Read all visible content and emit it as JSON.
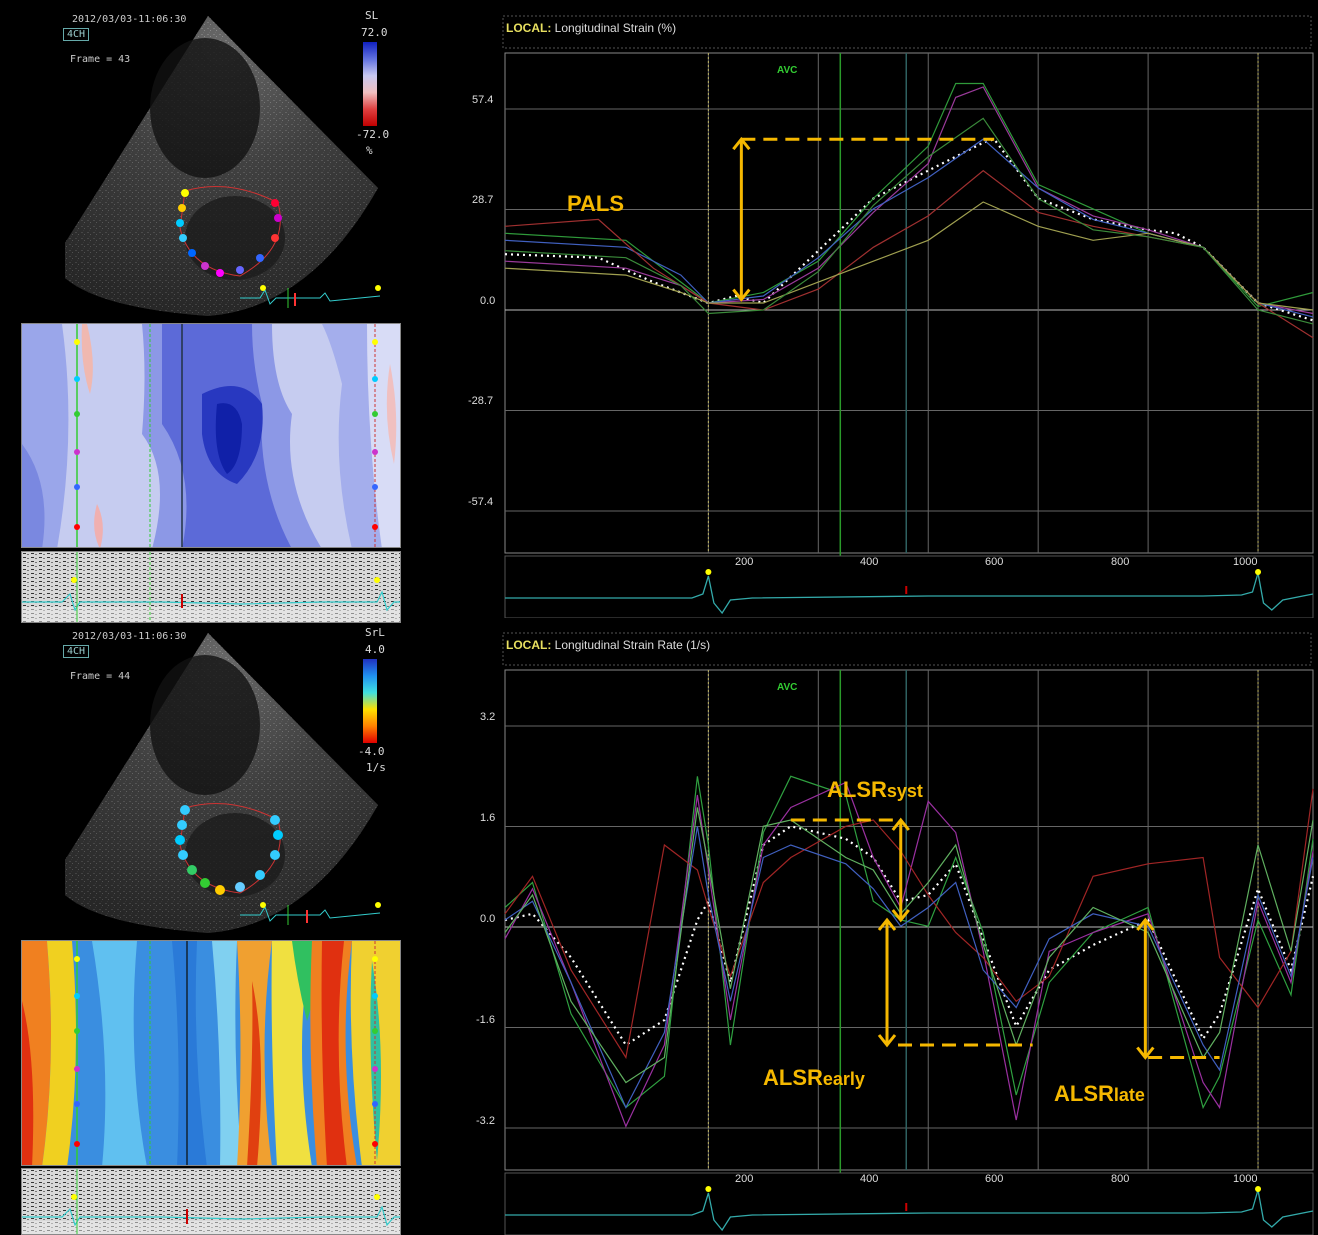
{
  "top_panel": {
    "timestamp": "2012/03/03-11:06:30",
    "view_badge": "4CH",
    "frame": "Frame = 43",
    "colorbar": {
      "label": "SL",
      "max": "72.0",
      "min": "-72.0",
      "unit": "%"
    },
    "graph": {
      "local_label": "LOCAL:",
      "title": "Longitudinal Strain (%)",
      "y_ticks": [
        "57.4",
        "28.7",
        "0.0",
        "-28.7",
        "-57.4"
      ],
      "avc_label": "AVC",
      "annotation": "PALS"
    }
  },
  "bottom_panel": {
    "timestamp": "2012/03/03-11:06:30",
    "view_badge": "4CH",
    "frame": "Frame = 44",
    "colorbar": {
      "label": "SrL",
      "max": "4.0",
      "min": "-4.0",
      "unit": "1/s"
    },
    "graph": {
      "local_label": "LOCAL:",
      "title": "Longitudinal Strain Rate (1/s)",
      "y_ticks": [
        "3.2",
        "1.6",
        "0.0",
        "-1.6",
        "-3.2"
      ],
      "avc_label": "AVC",
      "ann_syst_main": "ALSR",
      "ann_syst_sub": "syst",
      "ann_early_main": "ALSR",
      "ann_early_sub": "early",
      "ann_late_main": "ALSR",
      "ann_late_sub": "late"
    }
  },
  "ecg_x_ticks": [
    "200",
    "400",
    "600",
    "800",
    "1000"
  ],
  "colors": {
    "annotation": "#f5b800",
    "avc": "#33cc33",
    "grid": "#777777"
  },
  "chart_data": [
    {
      "type": "line",
      "title": "Longitudinal Strain (%)",
      "xlabel": "",
      "ylabel": "",
      "xlim": [
        -370,
        1100
      ],
      "ylim": [
        -71.75,
        71.75
      ],
      "series": [
        {
          "color": "#ffffff",
          "dashed": true,
          "x": [
            -370,
            -200,
            -100,
            0,
            50,
            100,
            200,
            300,
            400,
            500,
            520,
            600,
            700,
            800,
            850,
            900,
            1000,
            1100
          ],
          "y": [
            14,
            13,
            6,
            0,
            2,
            0,
            15,
            30,
            38,
            46,
            47,
            30,
            24,
            21,
            20,
            16,
            0,
            -5
          ]
        },
        {
          "color": "#2f9a3a",
          "x": [
            -370,
            -150,
            -50,
            0,
            100,
            200,
            300,
            400,
            450,
            500,
            600,
            700,
            800,
            900,
            1000,
            1100
          ],
          "y": [
            20,
            18,
            6,
            0,
            3,
            12,
            30,
            45,
            63,
            63,
            34,
            27,
            20,
            16,
            -1,
            3
          ]
        },
        {
          "color": "#9a3a9a",
          "x": [
            -370,
            -150,
            -50,
            0,
            100,
            200,
            300,
            400,
            450,
            500,
            600,
            700,
            800,
            900,
            1000,
            1100
          ],
          "y": [
            12,
            10,
            5,
            0,
            1,
            10,
            26,
            40,
            59,
            62,
            33,
            25,
            21,
            16,
            0,
            -3
          ]
        },
        {
          "color": "#4060c0",
          "x": [
            -370,
            -150,
            -50,
            0,
            100,
            200,
            300,
            400,
            500,
            600,
            700,
            800,
            900,
            1000,
            1100
          ],
          "y": [
            18,
            16,
            8,
            0,
            2,
            13,
            27,
            36,
            47,
            33,
            24,
            20,
            16,
            0,
            -4
          ]
        },
        {
          "color": "#a03030",
          "x": [
            -370,
            -200,
            -100,
            0,
            100,
            200,
            300,
            400,
            500,
            600,
            700,
            800,
            900,
            1000,
            1100
          ],
          "y": [
            22,
            24,
            10,
            0,
            -2,
            4,
            16,
            25,
            38,
            26,
            22,
            19,
            16,
            0,
            -10
          ]
        },
        {
          "color": "#a0a050",
          "x": [
            -370,
            -150,
            -50,
            0,
            100,
            200,
            300,
            400,
            500,
            600,
            700,
            800,
            900,
            1000,
            1100
          ],
          "y": [
            10,
            8,
            3,
            0,
            0,
            6,
            12,
            18,
            29,
            22,
            18,
            20,
            16,
            0,
            -2
          ]
        },
        {
          "color": "#3a8a3a",
          "x": [
            -370,
            -150,
            -50,
            0,
            100,
            200,
            300,
            400,
            500,
            600,
            700,
            800,
            900,
            1000,
            1100
          ],
          "y": [
            15,
            13,
            5,
            -3,
            -2,
            9,
            28,
            42,
            53,
            30,
            21,
            19,
            16,
            -2,
            -6
          ]
        }
      ]
    },
    {
      "type": "line",
      "title": "Longitudinal Strain Rate (1/s)",
      "xlabel": "",
      "ylabel": "",
      "xlim": [
        -370,
        1100
      ],
      "ylim": [
        -4.0,
        4.0
      ],
      "series": [
        {
          "color": "#ffffff",
          "dashed": true,
          "x": [
            -370,
            -320,
            -250,
            -150,
            -80,
            -20,
            0,
            40,
            100,
            150,
            250,
            300,
            350,
            400,
            450,
            500,
            560,
            620,
            700,
            800,
            900,
            930,
            1000,
            1060,
            1100
          ],
          "y": [
            0.0,
            0.1,
            -0.6,
            -2.0,
            -1.6,
            0.0,
            0.3,
            -1.0,
            1.2,
            1.5,
            1.3,
            1.0,
            0.3,
            0.4,
            0.9,
            -0.3,
            -1.7,
            -0.8,
            -0.4,
            0.0,
            -1.9,
            -1.5,
            0.5,
            -0.8,
            0.7
          ]
        },
        {
          "color": "#2fa040",
          "x": [
            -370,
            -320,
            -250,
            -150,
            -80,
            -20,
            0,
            40,
            100,
            150,
            250,
            300,
            350,
            400,
            450,
            500,
            560,
            620,
            700,
            800,
            900,
            930,
            1000,
            1060,
            1100
          ],
          "y": [
            0.2,
            0.6,
            -1.5,
            -3.0,
            -2.5,
            2.3,
            1.2,
            -2.0,
            1.4,
            2.3,
            2.0,
            0.3,
            0.0,
            -0.1,
            1.0,
            -0.2,
            -2.8,
            -1.0,
            -0.2,
            0.2,
            -3.0,
            -2.5,
            0.0,
            -1.2,
            1.3
          ]
        },
        {
          "color": "#9a30a0",
          "x": [
            -370,
            -320,
            -250,
            -150,
            -80,
            -20,
            0,
            40,
            100,
            150,
            250,
            300,
            350,
            400,
            450,
            500,
            560,
            620,
            700,
            800,
            900,
            930,
            1000,
            1060,
            1100
          ],
          "y": [
            -0.3,
            0.5,
            -1.0,
            -3.3,
            -2.0,
            2.0,
            0.8,
            -1.6,
            1.2,
            1.8,
            2.2,
            1.0,
            0.2,
            1.9,
            1.4,
            -0.5,
            -3.2,
            -0.5,
            -0.2,
            0.1,
            -2.6,
            -3.0,
            0.3,
            -1.0,
            1.1
          ]
        },
        {
          "color": "#a02525",
          "x": [
            -370,
            -320,
            -250,
            -150,
            -80,
            -20,
            0,
            40,
            100,
            150,
            250,
            300,
            350,
            400,
            450,
            500,
            560,
            620,
            700,
            800,
            900,
            930,
            1000,
            1060,
            1100
          ],
          "y": [
            0.1,
            0.7,
            -0.8,
            -2.2,
            1.2,
            0.8,
            0.2,
            -0.9,
            0.6,
            1.0,
            1.5,
            1.6,
            1.1,
            0.4,
            -0.2,
            -0.6,
            -1.3,
            -0.9,
            0.7,
            0.9,
            1.0,
            -0.6,
            -1.4,
            -0.5,
            2.1
          ]
        },
        {
          "color": "#4060c0",
          "x": [
            -370,
            -320,
            -250,
            -150,
            -80,
            -20,
            0,
            40,
            100,
            150,
            250,
            300,
            350,
            400,
            450,
            500,
            560,
            620,
            700,
            800,
            900,
            930,
            1000,
            1060,
            1100
          ],
          "y": [
            0.0,
            0.3,
            -1.0,
            -3.0,
            -1.8,
            1.5,
            0.4,
            -1.3,
            1.0,
            1.2,
            0.9,
            0.5,
            -0.1,
            0.2,
            0.6,
            -0.8,
            -1.4,
            -0.3,
            0.1,
            -0.1,
            -2.0,
            -2.4,
            0.4,
            -0.9,
            1.0
          ]
        },
        {
          "color": "#60b060",
          "x": [
            -370,
            -320,
            -250,
            -150,
            -80,
            -20,
            0,
            40,
            100,
            150,
            250,
            300,
            350,
            400,
            450,
            500,
            560,
            620,
            700,
            800,
            900,
            930,
            1000,
            1060,
            1100
          ],
          "y": [
            -0.2,
            0.4,
            -1.3,
            -2.6,
            -2.2,
            1.8,
            0.9,
            -1.1,
            1.5,
            1.6,
            1.0,
            0.8,
            0.1,
            0.6,
            1.2,
            -0.4,
            -2.0,
            -0.6,
            0.2,
            -0.2,
            -2.2,
            -1.8,
            1.2,
            -0.5,
            1.6
          ]
        }
      ]
    }
  ]
}
